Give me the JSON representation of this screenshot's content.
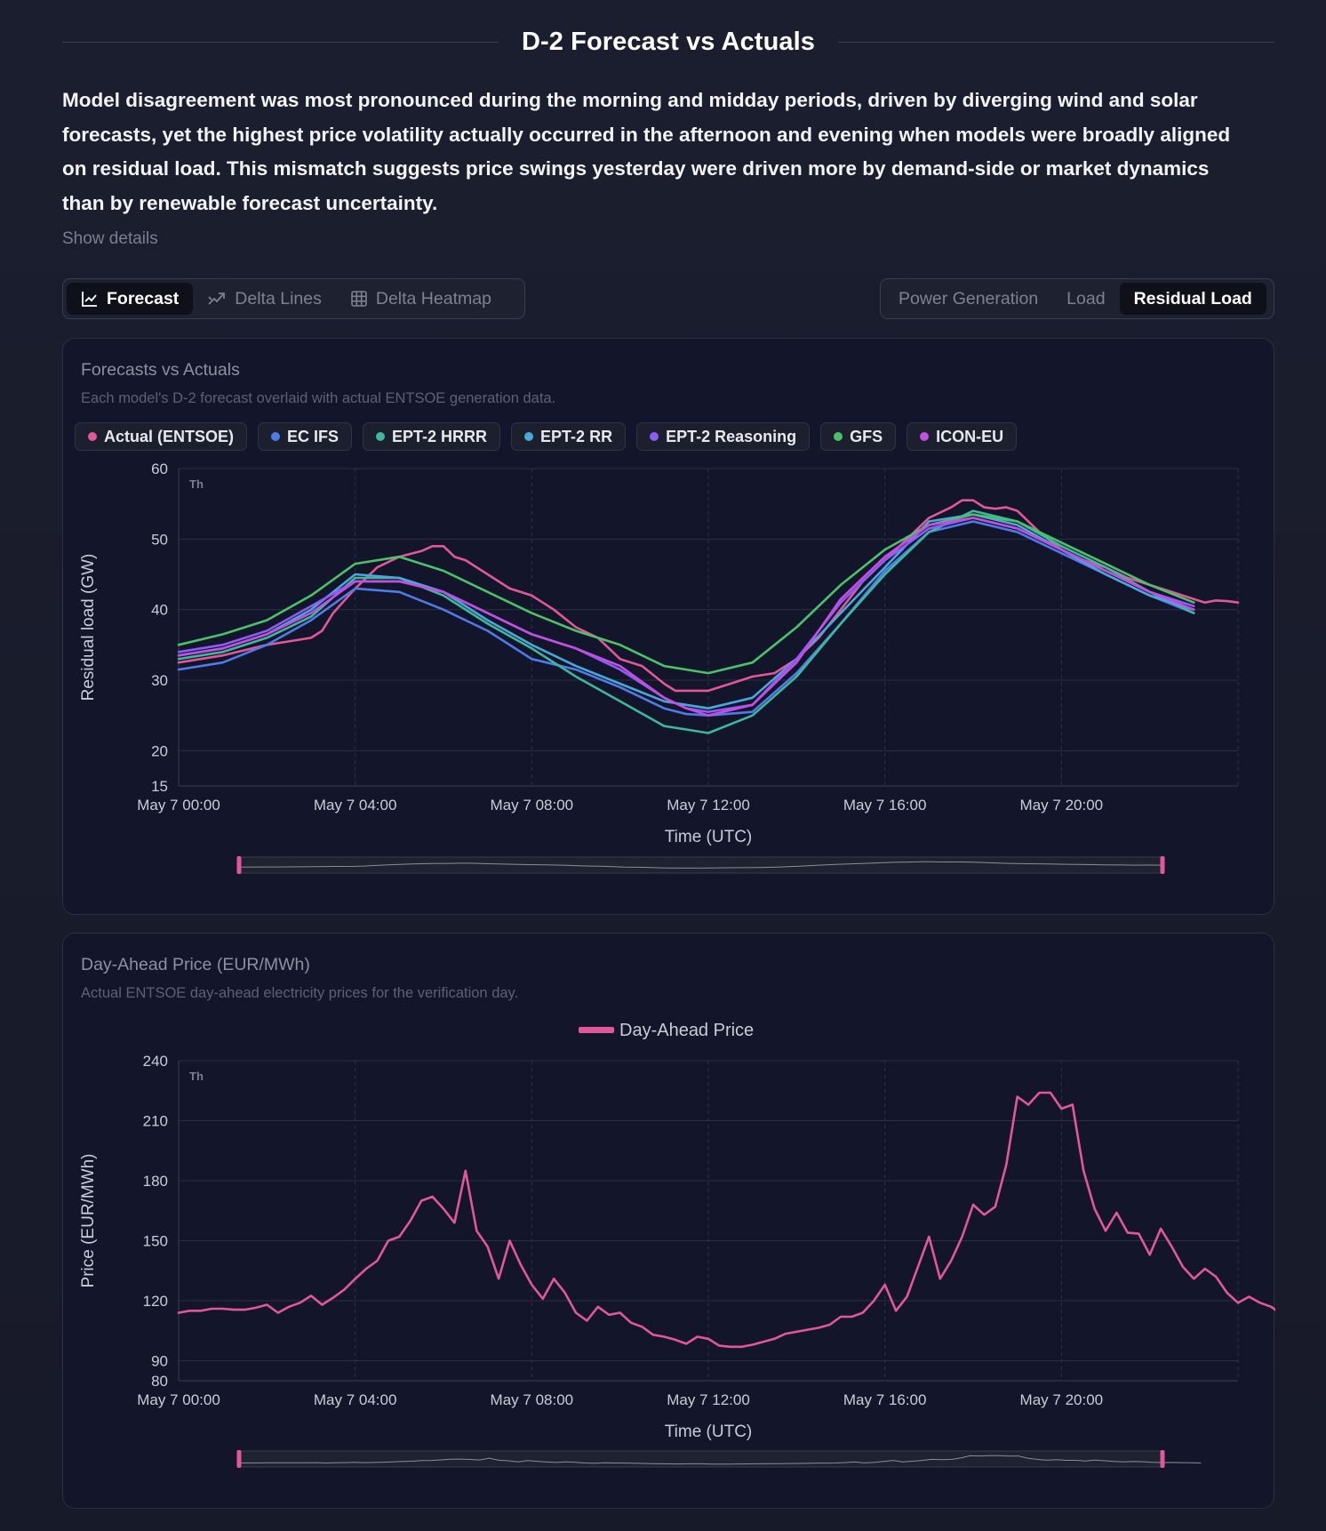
{
  "header": {
    "title": "D-2 Forecast vs Actuals",
    "summary": "Model disagreement was most pronounced during the morning and midday periods, driven by diverging wind and solar forecasts, yet the highest price volatility actually occurred in the afternoon and evening when models were broadly aligned on residual load. This mismatch suggests price swings yesterday were driven more by demand-side or market dynamics than by renewable forecast uncertainty.",
    "show_details": "Show details"
  },
  "view_tabs": {
    "forecast": "Forecast",
    "delta_lines": "Delta Lines",
    "delta_heatmap": "Delta Heatmap",
    "active": "Forecast"
  },
  "metric_tabs": {
    "power_generation": "Power Generation",
    "load": "Load",
    "residual_load": "Residual Load",
    "active": "Residual Load"
  },
  "card1": {
    "title": "Forecasts vs Actuals",
    "subtitle": "Each model's D-2 forecast overlaid with actual ENTSOE generation data.",
    "legend": [
      {
        "label": "Actual (ENTSOE)",
        "color": "#e0589a"
      },
      {
        "label": "EC IFS",
        "color": "#4f7be8"
      },
      {
        "label": "EPT-2 HRRR",
        "color": "#3fb69e"
      },
      {
        "label": "EPT-2 RR",
        "color": "#4aa8d8"
      },
      {
        "label": "EPT-2 Reasoning",
        "color": "#8b5cf6"
      },
      {
        "label": "GFS",
        "color": "#4cc16a"
      },
      {
        "label": "ICON-EU",
        "color": "#c44ee0"
      }
    ]
  },
  "card2": {
    "title": "Day-Ahead Price (EUR/MWh)",
    "subtitle": "Actual ENTSOE day-ahead electricity prices for the verification day."
  },
  "chart_data": [
    {
      "type": "line",
      "ylabel": "Residual load (GW)",
      "xlabel": "Time (UTC)",
      "ylim": [
        15,
        60
      ],
      "yticks": [
        15,
        20,
        30,
        40,
        50,
        60
      ],
      "xlim_hours": [
        0,
        24
      ],
      "xticks": [
        "May 7 00:00",
        "May 7 04:00",
        "May 7 08:00",
        "May 7 12:00",
        "May 7 16:00",
        "May 7 20:00"
      ],
      "xtick_hours": [
        0,
        4,
        8,
        12,
        16,
        20
      ],
      "corner_label": "Th",
      "grid": true,
      "legend_position": "top-left",
      "series": [
        {
          "name": "Actual (ENTSOE)",
          "color": "#e0589a",
          "x": [
            0,
            1,
            2,
            2.5,
            3,
            3.25,
            3.5,
            4,
            4.5,
            5,
            5.5,
            5.75,
            6,
            6.25,
            6.5,
            7,
            7.5,
            8,
            8.5,
            9,
            9.5,
            10,
            10.5,
            11,
            11.25,
            11.5,
            12,
            12.5,
            13,
            13.5,
            14,
            14.5,
            15,
            15.5,
            16,
            16.5,
            17,
            17.5,
            17.75,
            18,
            18.25,
            18.5,
            18.75,
            19,
            19.5,
            20,
            20.5,
            21,
            21.5,
            22,
            22.5,
            23,
            23.25,
            23.5,
            23.75,
            24
          ],
          "y": [
            32.5,
            33.5,
            35,
            35.5,
            36,
            37,
            39.5,
            43,
            46,
            47.5,
            48.3,
            49,
            49,
            47.5,
            47,
            45,
            43,
            42,
            40,
            37.5,
            36,
            33,
            32,
            29.5,
            28.5,
            28.5,
            28.5,
            29.5,
            30.5,
            31,
            33,
            36,
            40,
            44,
            47,
            50,
            53,
            54.5,
            55.5,
            55.5,
            54.5,
            54.3,
            54.5,
            54,
            51,
            48.5,
            47,
            46,
            44.5,
            43.5,
            42.5,
            41.5,
            41,
            41.3,
            41.2,
            41
          ]
        },
        {
          "name": "EC IFS",
          "color": "#4f7be8",
          "x": [
            0,
            1,
            2,
            3,
            4,
            5,
            6,
            7,
            8,
            9,
            10,
            11,
            11.5,
            12,
            13,
            14,
            15,
            16,
            17,
            18,
            19,
            20,
            21,
            22,
            23
          ],
          "y": [
            31.5,
            32.5,
            35,
            38.5,
            43,
            42.5,
            40,
            37,
            33,
            31.5,
            29,
            26,
            25.2,
            25,
            25.5,
            31,
            38,
            45.5,
            51,
            52.5,
            51,
            48,
            45,
            42,
            39.5
          ]
        },
        {
          "name": "EPT-2 HRRR",
          "color": "#3fb69e",
          "x": [
            0,
            1,
            2,
            3,
            4,
            5,
            6,
            7,
            8,
            9,
            10,
            11,
            11.5,
            12,
            13,
            14,
            15,
            16,
            17,
            18,
            19,
            20,
            21,
            22,
            23
          ],
          "y": [
            33,
            34,
            36,
            39,
            44.5,
            44.5,
            42,
            38,
            34.5,
            30.5,
            27,
            23.5,
            23,
            22.5,
            25,
            30.5,
            38,
            45,
            51,
            54,
            52.5,
            49,
            46,
            42.5,
            39.5
          ]
        },
        {
          "name": "EPT-2 RR",
          "color": "#4aa8d8",
          "x": [
            0,
            1,
            2,
            3,
            4,
            5,
            6,
            7,
            8,
            9,
            10,
            11,
            11.5,
            12,
            13,
            14,
            15,
            16,
            17,
            18,
            19,
            20,
            21,
            22,
            23
          ],
          "y": [
            33.5,
            34.5,
            36.5,
            40,
            45,
            44.5,
            42.5,
            38.5,
            35,
            32,
            29.5,
            27,
            26.5,
            26,
            27.5,
            33,
            39.5,
            46,
            52.5,
            53.5,
            52,
            48.5,
            45,
            42,
            40
          ]
        },
        {
          "name": "EPT-2 Reasoning",
          "color": "#8b5cf6",
          "x": [
            0,
            1,
            2,
            3,
            4,
            5,
            6,
            7,
            8,
            9,
            10,
            11,
            11.5,
            12,
            13,
            14,
            15,
            16,
            17,
            18,
            19,
            20,
            21,
            22,
            23
          ],
          "y": [
            34,
            35,
            37,
            40.5,
            44,
            44,
            42.5,
            39.5,
            36.5,
            34.5,
            31.5,
            27.5,
            26,
            25.5,
            26.5,
            33,
            41,
            47,
            51.5,
            53,
            51.5,
            48.5,
            45.5,
            42.5,
            40.5
          ]
        },
        {
          "name": "GFS",
          "color": "#4cc16a",
          "x": [
            0,
            1,
            2,
            3,
            4,
            5,
            6,
            7,
            8,
            9,
            10,
            11,
            11.5,
            12,
            13,
            14,
            15,
            16,
            17,
            18,
            19,
            20,
            21,
            22,
            23
          ],
          "y": [
            35,
            36.5,
            38.5,
            42,
            46.5,
            47.5,
            45.5,
            42.5,
            39.5,
            37,
            35,
            32,
            31.5,
            31,
            32.5,
            37.5,
            43.5,
            48.5,
            52,
            53.5,
            52.5,
            49.5,
            46.5,
            43.5,
            41
          ]
        },
        {
          "name": "ICON-EU",
          "color": "#c44ee0",
          "x": [
            0,
            1,
            2,
            3,
            4,
            5,
            6,
            7,
            8,
            9,
            10,
            11,
            11.5,
            12,
            13,
            14,
            15,
            16,
            17,
            18,
            19,
            20,
            21,
            22,
            23
          ],
          "y": [
            33.5,
            34.5,
            36.5,
            39.5,
            44,
            44,
            42.5,
            39.5,
            36.5,
            34.5,
            32,
            27.5,
            26,
            25,
            26.5,
            32.5,
            41.5,
            47.5,
            52,
            53,
            51.5,
            48.5,
            45.5,
            42.5,
            40
          ]
        }
      ]
    },
    {
      "type": "line",
      "ylabel": "Price (EUR/MWh)",
      "xlabel": "Time (UTC)",
      "ylim": [
        80,
        240
      ],
      "yticks": [
        80,
        90,
        120,
        150,
        180,
        210,
        240
      ],
      "xlim_hours": [
        0,
        24
      ],
      "xticks": [
        "May 7 00:00",
        "May 7 04:00",
        "May 7 08:00",
        "May 7 12:00",
        "May 7 16:00",
        "May 7 20:00"
      ],
      "xtick_hours": [
        0,
        4,
        8,
        12,
        16,
        20
      ],
      "corner_label": "Th",
      "grid": true,
      "legend_position": "top-center",
      "series": [
        {
          "name": "Day-Ahead Price",
          "color": "#e0589a",
          "step_minutes": 15,
          "values": [
            114,
            115,
            115,
            116,
            116,
            115.5,
            115.5,
            116.5,
            118,
            114,
            117,
            119,
            122.5,
            118,
            121.5,
            125.5,
            131,
            136,
            140,
            150,
            152,
            160,
            170,
            172,
            166,
            159,
            185,
            155,
            147,
            131,
            150,
            138,
            128,
            121,
            131,
            124,
            114,
            110,
            117,
            113,
            114,
            109,
            107,
            103,
            102,
            100.5,
            98.5,
            102,
            101,
            97.5,
            97,
            97,
            98,
            99.5,
            101,
            103.5,
            104.5,
            105.5,
            106.5,
            108,
            112,
            112,
            114,
            120,
            128,
            115,
            122,
            137,
            152,
            131,
            140,
            152,
            168,
            163,
            167,
            188,
            222,
            218,
            224,
            224,
            216,
            218,
            185,
            166,
            155,
            164,
            154,
            153.5,
            143,
            156,
            147,
            137,
            131,
            136,
            132,
            124,
            119,
            122,
            119,
            117,
            113
          ]
        }
      ]
    }
  ]
}
